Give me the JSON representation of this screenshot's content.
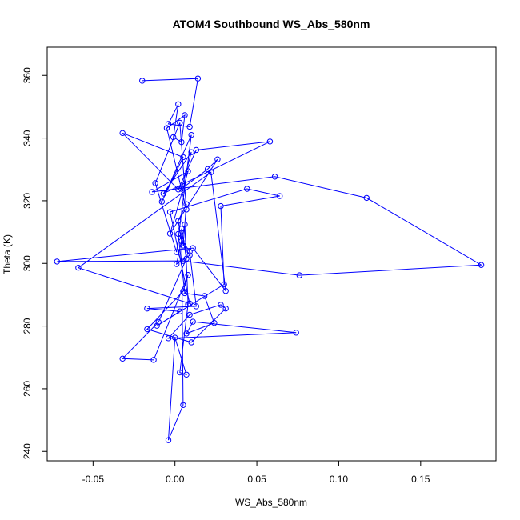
{
  "chart_data": {
    "type": "line",
    "title": "ATOM4 Southbound WS_Abs_580nm",
    "xlabel": "WS_Abs_580nm",
    "ylabel": "Theta (K)",
    "xlim": [
      -0.078,
      0.196
    ],
    "ylim": [
      237,
      369
    ],
    "x_ticks": [
      -0.05,
      0.0,
      0.05,
      0.1,
      0.15
    ],
    "x_tick_labels": [
      "-0.05",
      "0.00",
      "0.05",
      "0.10",
      "0.15"
    ],
    "y_ticks": [
      240,
      260,
      280,
      300,
      320,
      340,
      360
    ],
    "y_tick_labels": [
      "240",
      "260",
      "280",
      "300",
      "320",
      "340",
      "360"
    ],
    "grid": false,
    "marker": "open-circle",
    "series": [
      {
        "color": "#0000ff",
        "x": [
          -0.02,
          0.014,
          0.009,
          -0.004,
          0.002,
          -0.001,
          0.004,
          0.006,
          -0.005,
          0.007,
          0.003,
          -0.012,
          0.001,
          0.01,
          -0.008,
          0.005,
          -0.032,
          0.002,
          0.013,
          0.058,
          -0.007,
          0.01,
          0.004,
          0.02,
          0.026,
          -0.003,
          0.008,
          -0.014,
          0.061,
          0.117,
          0.187,
          0.076,
          0.005,
          -0.072,
          0.011,
          0.031,
          0.022,
          -0.059,
          0.009,
          -0.003,
          0.044,
          0.064,
          0.028,
          0.03,
          -0.011,
          0.003,
          -0.017,
          0.013,
          0.009,
          0.002,
          0.006,
          0.018,
          0.024,
          0.007,
          0.011,
          0.074,
          -0.004,
          0.009,
          0.028,
          0.031,
          0.01,
          -0.017,
          0.005,
          0.008,
          -0.013,
          -0.032,
          -0.01,
          0.007,
          0.004,
          0.005,
          -0.004,
          0.0,
          0.007,
          0.003,
          0.008,
          0.006,
          0.001,
          0.009,
          0.004,
          0.002,
          0.007,
          0.005
        ],
        "y": [
          358.3,
          359.0,
          343.6,
          344.5,
          350.8,
          340.3,
          338.7,
          347.3,
          343.2,
          317.2,
          344.9,
          325.6,
          303.6,
          341.0,
          319.7,
          333.9,
          341.6,
          323.6,
          336.2,
          338.9,
          322.3,
          335.5,
          323.8,
          330.1,
          333.2,
          309.5,
          329.4,
          322.8,
          327.7,
          320.9,
          299.5,
          296.2,
          300.8,
          300.6,
          304.9,
          291.2,
          329.1,
          298.6,
          287.2,
          316.4,
          323.8,
          321.5,
          318.3,
          293.3,
          280.1,
          284.7,
          285.6,
          286.3,
          303.7,
          309.4,
          290.5,
          289.6,
          281.0,
          277.6,
          281.4,
          277.9,
          276.1,
          283.6,
          286.8,
          285.6,
          274.8,
          279.0,
          291.1,
          296.3,
          269.2,
          269.6,
          281.3,
          301.5,
          311.1,
          254.8,
          243.6,
          276.3,
          264.5,
          265.2,
          287.0,
          312.4,
          299.8,
          302.6,
          307.1,
          313.6,
          318.9,
          305.7
        ]
      }
    ]
  }
}
